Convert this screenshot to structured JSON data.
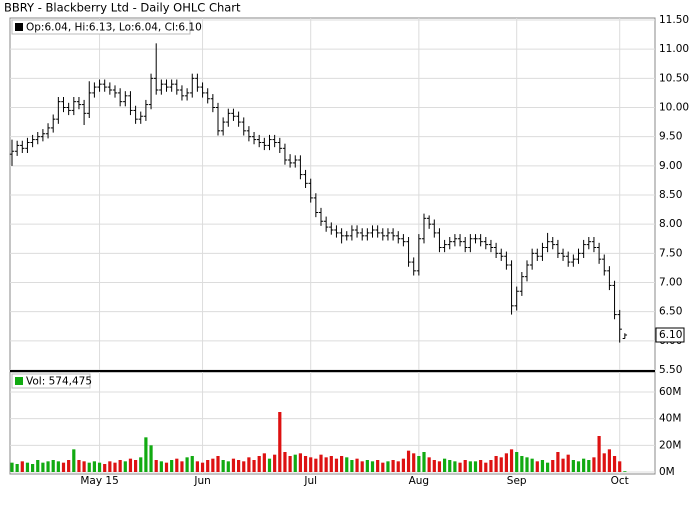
{
  "chart_data": {
    "type": "ohlc",
    "title": "BBRY - Blackberry Ltd - Daily OHLC Chart",
    "ohlc_legend": "Op:6.04, Hi:6.13, Lo:6.04, Cl:6.10",
    "volume_legend": "Vol: 574,475",
    "last_price_label": "6.10",
    "color": "#000000",
    "grid": true,
    "categories": [
      null,
      null,
      null,
      null,
      null,
      null,
      null,
      null,
      null,
      null,
      null,
      null,
      null,
      null,
      null,
      null,
      null,
      "May 15",
      null,
      null,
      null,
      null,
      null,
      null,
      null,
      null,
      null,
      null,
      null,
      null,
      null,
      null,
      null,
      null,
      null,
      null,
      null,
      "Jun",
      null,
      null,
      null,
      null,
      null,
      null,
      null,
      null,
      null,
      null,
      null,
      null,
      null,
      null,
      null,
      null,
      null,
      null,
      null,
      null,
      "Jul",
      null,
      null,
      null,
      null,
      null,
      null,
      null,
      null,
      null,
      null,
      null,
      null,
      null,
      null,
      null,
      null,
      null,
      null,
      null,
      null,
      "Aug",
      null,
      null,
      null,
      null,
      null,
      null,
      null,
      null,
      null,
      null,
      null,
      null,
      null,
      null,
      null,
      null,
      null,
      null,
      "Sep",
      null,
      null,
      null,
      null,
      null,
      null,
      null,
      null,
      null,
      null,
      null,
      null,
      null,
      null,
      null,
      null,
      null,
      null,
      null,
      "Oct",
      null
    ],
    "open": [
      9.2,
      9.25,
      9.35,
      9.3,
      9.4,
      9.45,
      9.5,
      9.55,
      9.65,
      9.8,
      10.1,
      10.0,
      9.95,
      10.1,
      10.05,
      9.9,
      10.25,
      10.35,
      10.4,
      10.35,
      10.3,
      10.25,
      10.1,
      10.2,
      9.95,
      9.8,
      9.85,
      10.05,
      10.5,
      10.3,
      10.4,
      10.35,
      10.4,
      10.3,
      10.2,
      10.25,
      10.5,
      10.35,
      10.25,
      10.15,
      10.0,
      9.6,
      9.75,
      9.9,
      9.85,
      9.75,
      9.6,
      9.5,
      9.45,
      9.4,
      9.35,
      9.45,
      9.4,
      9.3,
      9.1,
      9.05,
      9.1,
      8.85,
      8.7,
      8.45,
      8.2,
      8.05,
      7.95,
      7.9,
      7.85,
      7.8,
      7.8,
      7.9,
      7.85,
      7.8,
      7.85,
      7.9,
      7.85,
      7.8,
      7.85,
      7.8,
      7.75,
      7.7,
      7.35,
      7.2,
      7.75,
      8.1,
      8.0,
      7.85,
      7.6,
      7.65,
      7.7,
      7.75,
      7.7,
      7.6,
      7.75,
      7.75,
      7.7,
      7.65,
      7.6,
      7.5,
      7.45,
      7.3,
      6.6,
      6.85,
      7.1,
      7.3,
      7.5,
      7.45,
      7.6,
      7.7,
      7.65,
      7.5,
      7.45,
      7.35,
      7.4,
      7.5,
      7.65,
      7.7,
      7.6,
      7.4,
      7.2,
      6.95,
      6.45,
      6.04
    ],
    "high": [
      9.45,
      9.43,
      9.43,
      9.48,
      9.53,
      9.58,
      9.63,
      9.73,
      9.88,
      10.18,
      10.18,
      10.08,
      10.18,
      10.18,
      10.13,
      10.45,
      10.43,
      10.48,
      10.48,
      10.43,
      10.38,
      10.33,
      10.28,
      10.28,
      10.03,
      9.93,
      10.13,
      10.58,
      11.1,
      10.48,
      10.48,
      10.48,
      10.48,
      10.38,
      10.33,
      10.58,
      10.58,
      10.43,
      10.33,
      10.23,
      10.08,
      9.83,
      9.98,
      9.98,
      9.93,
      9.83,
      9.68,
      9.58,
      9.53,
      9.48,
      9.53,
      9.53,
      9.48,
      9.38,
      9.2,
      9.18,
      9.18,
      8.93,
      8.78,
      8.53,
      8.28,
      8.13,
      8.03,
      7.98,
      7.93,
      7.88,
      7.98,
      7.98,
      7.93,
      7.93,
      7.98,
      7.98,
      7.93,
      7.93,
      7.93,
      7.88,
      7.83,
      7.78,
      7.43,
      7.83,
      8.18,
      8.15,
      8.08,
      7.93,
      7.73,
      7.78,
      7.83,
      7.83,
      7.78,
      7.83,
      7.83,
      7.83,
      7.78,
      7.73,
      7.68,
      7.58,
      7.53,
      7.38,
      6.93,
      7.18,
      7.38,
      7.58,
      7.58,
      7.68,
      7.85,
      7.78,
      7.73,
      7.58,
      7.53,
      7.48,
      7.58,
      7.73,
      7.78,
      7.78,
      7.68,
      7.48,
      7.28,
      7.03,
      6.53,
      6.13
    ],
    "low": [
      9.0,
      9.17,
      9.22,
      9.22,
      9.32,
      9.37,
      9.42,
      9.47,
      9.57,
      9.72,
      9.92,
      9.87,
      9.87,
      9.97,
      9.7,
      9.82,
      10.17,
      10.27,
      10.27,
      10.22,
      10.17,
      10.02,
      10.02,
      9.87,
      9.72,
      9.72,
      9.77,
      9.97,
      10.22,
      10.22,
      10.27,
      10.27,
      10.22,
      10.12,
      10.12,
      10.17,
      10.27,
      10.17,
      10.07,
      9.92,
      9.52,
      9.52,
      9.67,
      9.77,
      9.67,
      9.52,
      9.42,
      9.37,
      9.32,
      9.27,
      9.27,
      9.32,
      9.22,
      9.02,
      8.97,
      8.97,
      8.77,
      8.62,
      8.37,
      8.12,
      7.97,
      7.87,
      7.82,
      7.77,
      7.67,
      7.72,
      7.72,
      7.77,
      7.72,
      7.72,
      7.77,
      7.77,
      7.72,
      7.72,
      7.72,
      7.67,
      7.62,
      7.27,
      7.12,
      7.12,
      7.67,
      7.92,
      7.77,
      7.52,
      7.52,
      7.57,
      7.62,
      7.62,
      7.52,
      7.52,
      7.67,
      7.62,
      7.57,
      7.52,
      7.42,
      7.37,
      7.22,
      6.45,
      6.52,
      6.77,
      7.02,
      7.22,
      7.37,
      7.37,
      7.52,
      7.57,
      7.42,
      7.37,
      7.27,
      7.27,
      7.32,
      7.42,
      7.57,
      7.52,
      7.32,
      7.12,
      6.87,
      6.37,
      5.97,
      6.04
    ],
    "close": [
      9.25,
      9.35,
      9.3,
      9.4,
      9.45,
      9.5,
      9.55,
      9.65,
      9.8,
      10.1,
      10.0,
      9.95,
      10.1,
      10.05,
      9.9,
      10.25,
      10.35,
      10.4,
      10.35,
      10.3,
      10.25,
      10.1,
      10.2,
      9.95,
      9.8,
      9.85,
      10.05,
      10.5,
      10.3,
      10.4,
      10.35,
      10.4,
      10.3,
      10.2,
      10.25,
      10.5,
      10.35,
      10.25,
      10.15,
      10.0,
      9.6,
      9.75,
      9.9,
      9.85,
      9.75,
      9.6,
      9.5,
      9.45,
      9.4,
      9.35,
      9.45,
      9.4,
      9.3,
      9.1,
      9.05,
      9.1,
      8.85,
      8.7,
      8.45,
      8.2,
      8.05,
      7.95,
      7.9,
      7.85,
      7.8,
      7.8,
      7.9,
      7.85,
      7.8,
      7.85,
      7.9,
      7.85,
      7.8,
      7.85,
      7.8,
      7.75,
      7.7,
      7.35,
      7.2,
      7.75,
      8.1,
      8.0,
      7.85,
      7.6,
      7.65,
      7.7,
      7.75,
      7.7,
      7.6,
      7.75,
      7.75,
      7.7,
      7.65,
      7.6,
      7.5,
      7.45,
      7.3,
      6.6,
      6.85,
      7.1,
      7.3,
      7.5,
      7.45,
      7.6,
      7.7,
      7.65,
      7.5,
      7.45,
      7.35,
      7.4,
      7.5,
      7.65,
      7.7,
      7.6,
      7.4,
      7.2,
      6.95,
      6.45,
      6.2,
      6.1
    ],
    "ylim": [
      5.5,
      11.5
    ],
    "yticks": [
      {
        "value": 5.5,
        "label": "5.50"
      },
      {
        "value": 6,
        "label": "6.00"
      },
      {
        "value": 6.5,
        "label": "6.50"
      },
      {
        "value": 7,
        "label": "7.00"
      },
      {
        "value": 7.5,
        "label": "7.50"
      },
      {
        "value": 8,
        "label": "8.00"
      },
      {
        "value": 8.5,
        "label": "8.50"
      },
      {
        "value": 9,
        "label": "9.00"
      },
      {
        "value": 9.5,
        "label": "9.50"
      },
      {
        "value": 10,
        "label": "10.00"
      },
      {
        "value": 10.5,
        "label": "10.50"
      },
      {
        "value": 11,
        "label": "11.00"
      },
      {
        "value": 11.5,
        "label": "11.50"
      }
    ],
    "volume": {
      "up_color": "#11aa11",
      "down_color": "#dd1111",
      "values": [
        7000000,
        6000000,
        8000000,
        7000000,
        6000000,
        9000000,
        7000000,
        8000000,
        9000000,
        8000000,
        7000000,
        9000000,
        17000000,
        9000000,
        8000000,
        7000000,
        8000000,
        7000000,
        6000000,
        8000000,
        7000000,
        9000000,
        8000000,
        10000000,
        9000000,
        11000000,
        26000000,
        20000000,
        9000000,
        8000000,
        7000000,
        9000000,
        10000000,
        8000000,
        11000000,
        12000000,
        8000000,
        7000000,
        9000000,
        10000000,
        12000000,
        9000000,
        8000000,
        10000000,
        9000000,
        8000000,
        11000000,
        9000000,
        12000000,
        14000000,
        10000000,
        13000000,
        45000000,
        15000000,
        12000000,
        13000000,
        14000000,
        12000000,
        11000000,
        10000000,
        13000000,
        11000000,
        12000000,
        10000000,
        12000000,
        11000000,
        9000000,
        10000000,
        8000000,
        9000000,
        8000000,
        9000000,
        7000000,
        8000000,
        9000000,
        8000000,
        10000000,
        16000000,
        14000000,
        12000000,
        15000000,
        11000000,
        9000000,
        8000000,
        10000000,
        9000000,
        8000000,
        7000000,
        9000000,
        8000000,
        8000000,
        9000000,
        7000000,
        9000000,
        12000000,
        11000000,
        14000000,
        17000000,
        15000000,
        12000000,
        11000000,
        10000000,
        8000000,
        9000000,
        7000000,
        9000000,
        15000000,
        10000000,
        13000000,
        9000000,
        8000000,
        10000000,
        9000000,
        11000000,
        27000000,
        14000000,
        17000000,
        12000000,
        8000000,
        574475
      ],
      "ylim": [
        0,
        75000000
      ],
      "yticks": [
        {
          "value": 0,
          "label": "0M"
        },
        {
          "value": 20000000,
          "label": "20M"
        },
        {
          "value": 40000000,
          "label": "40M"
        },
        {
          "value": 60000000,
          "label": "60M"
        }
      ]
    }
  }
}
